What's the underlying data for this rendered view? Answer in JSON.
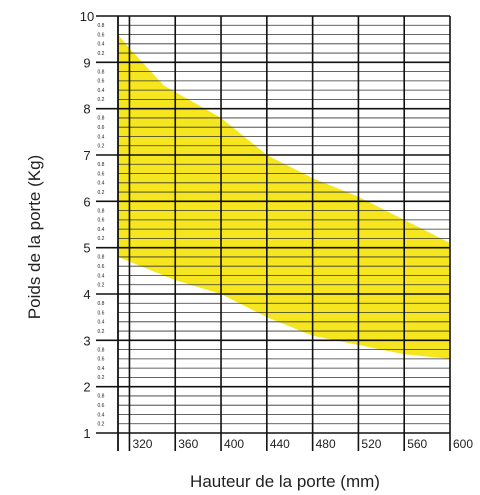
{
  "chart_data": {
    "type": "area",
    "title": "",
    "xlabel": "Hauteur de la porte (mm)",
    "ylabel": "Poids de la porte (Kg)",
    "xlim": [
      310,
      600
    ],
    "ylim": [
      1,
      10
    ],
    "x_ticks": [
      "320",
      "360",
      "400",
      "440",
      "480",
      "520",
      "560",
      "600"
    ],
    "y_ticks": [
      "1",
      "2",
      "3",
      "4",
      "5",
      "6",
      "7",
      "8",
      "9",
      "10"
    ],
    "y_minor_ticks": [
      "0.2",
      "0.4",
      "0.6",
      "0.8"
    ],
    "grid": true,
    "band_color": "#f5e61f",
    "series": [
      {
        "values_upper": [
          [
            310,
            9.6
          ],
          [
            320,
            9.3
          ],
          [
            350,
            8.5
          ],
          [
            400,
            7.8
          ],
          [
            440,
            7.0
          ],
          [
            480,
            6.5
          ],
          [
            520,
            6.1
          ],
          [
            560,
            5.6
          ],
          [
            600,
            5.1
          ]
        ],
        "values_lower": [
          [
            310,
            4.8
          ],
          [
            320,
            4.7
          ],
          [
            360,
            4.3
          ],
          [
            400,
            4.0
          ],
          [
            440,
            3.5
          ],
          [
            480,
            3.1
          ],
          [
            520,
            2.9
          ],
          [
            560,
            2.7
          ],
          [
            600,
            2.6
          ]
        ]
      }
    ]
  }
}
